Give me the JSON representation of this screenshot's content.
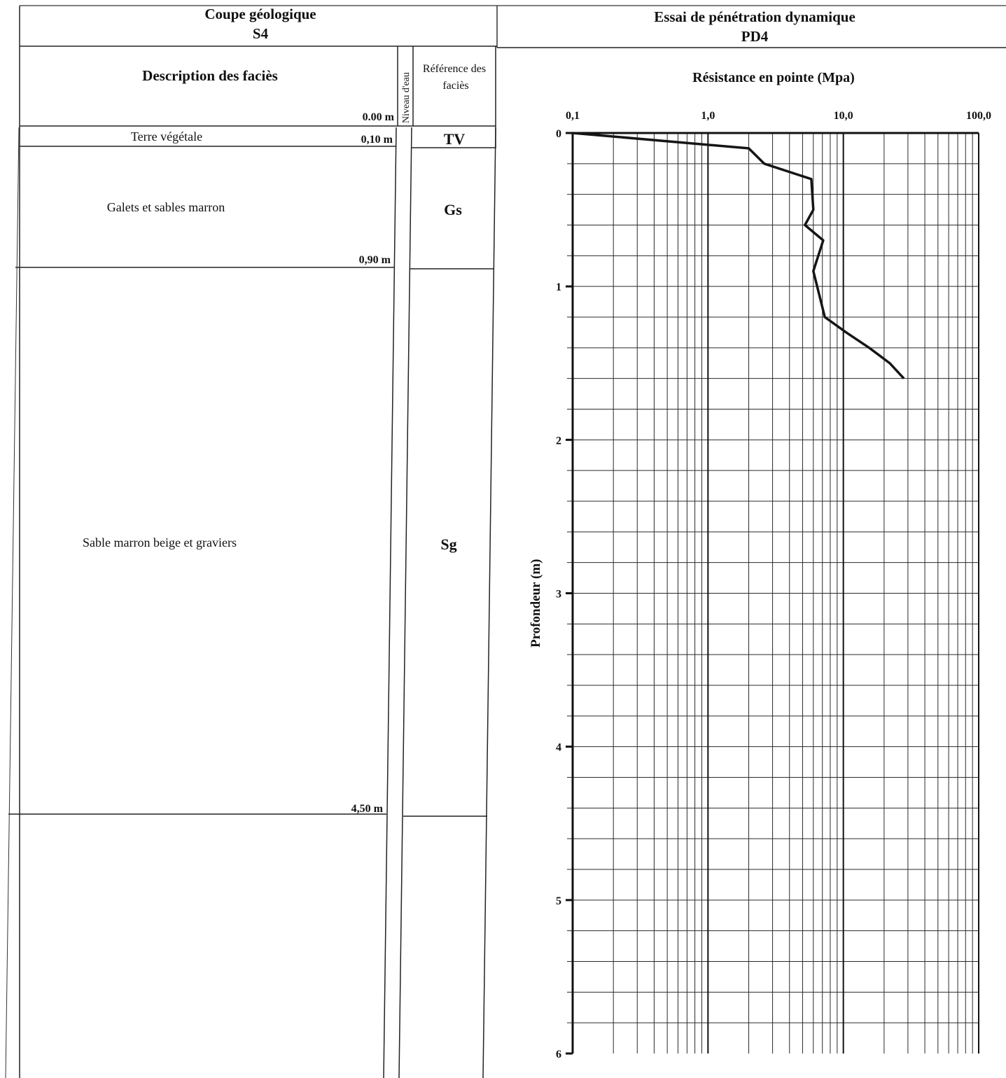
{
  "left_panel": {
    "title": "Coupe géologique",
    "code": "S4",
    "header": {
      "description": "Description des faciès",
      "water": "Niveau d'eau",
      "reference": "Référence des faciès",
      "start_depth": "0.00 m"
    },
    "layers": [
      {
        "description": "Terre végétale",
        "reference": "TV",
        "bottom_label": "0,10 m"
      },
      {
        "description": "Galets et sables marron",
        "reference": "Gs",
        "bottom_label": "0,90 m"
      },
      {
        "description": "Sable marron beige et graviers",
        "reference": "Sg",
        "bottom_label": "4,50 m"
      }
    ]
  },
  "right_panel": {
    "title": "Essai de pénétration dynamique",
    "code": "PD4"
  },
  "chart_data": {
    "type": "line",
    "title": "Résistance en pointe (Mpa)",
    "xlabel": "Résistance en pointe (Mpa)",
    "ylabel": "Profondeur (m)",
    "x_scale": "log",
    "xlim": [
      0.1,
      100
    ],
    "ylim": [
      0,
      6
    ],
    "y_inverted": true,
    "x_ticks": [
      "0,1",
      "1,0",
      "10,0",
      "100,0"
    ],
    "y_ticks": [
      "0",
      "1",
      "2",
      "3",
      "4",
      "5",
      "6"
    ],
    "grid": true,
    "series": [
      {
        "x": [
          0.1,
          2.0,
          2.6,
          5.8,
          6.0,
          5.2,
          7.1,
          6.0,
          7.3,
          10.5,
          15.5,
          22.0,
          28.0
        ],
        "y": [
          0.0,
          0.1,
          0.2,
          0.3,
          0.5,
          0.6,
          0.7,
          0.9,
          1.2,
          1.3,
          1.4,
          1.5,
          1.6
        ]
      }
    ]
  }
}
